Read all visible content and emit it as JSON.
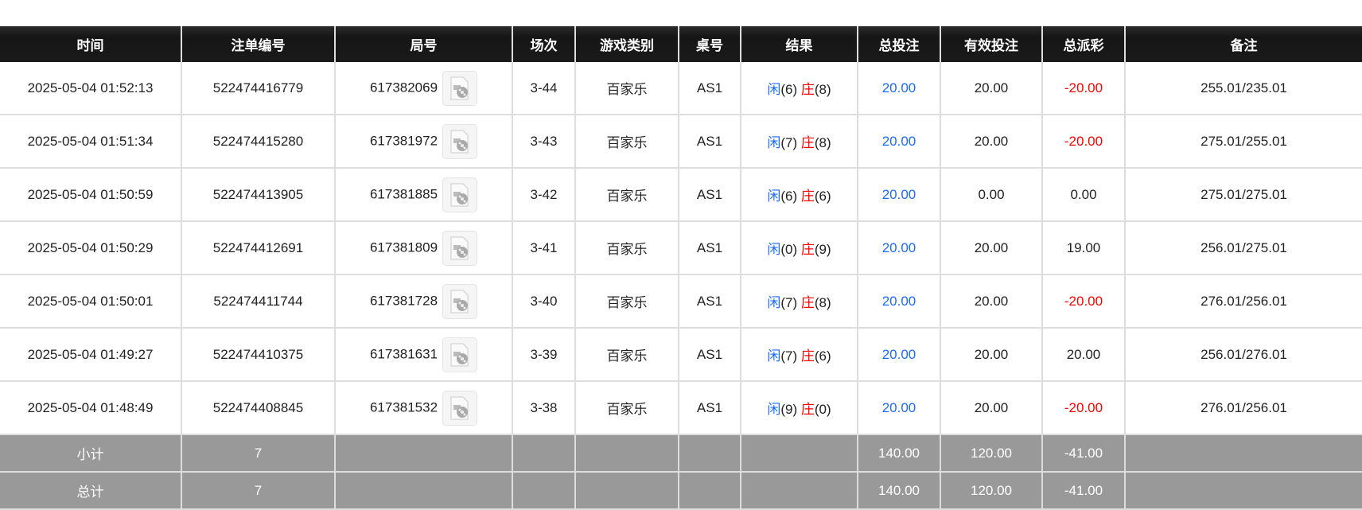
{
  "headers": [
    "时间",
    "注单编号",
    "局号",
    "场次",
    "游戏类别",
    "桌号",
    "结果",
    "总投注",
    "有效投注",
    "总派彩",
    "备注"
  ],
  "result_labels": {
    "player": "闲",
    "banker": "庄"
  },
  "rows": [
    {
      "time": "2025-05-04 01:52:13",
      "bet_id": "522474416779",
      "round": "617382069",
      "shoe": "3-44",
      "game": "百家乐",
      "table": "AS1",
      "player": "(6)",
      "banker": "(8)",
      "total_bet": "20.00",
      "valid_bet": "20.00",
      "payout": "-20.00",
      "payout_neg": true,
      "note": "255.01/235.01"
    },
    {
      "time": "2025-05-04 01:51:34",
      "bet_id": "522474415280",
      "round": "617381972",
      "shoe": "3-43",
      "game": "百家乐",
      "table": "AS1",
      "player": "(7)",
      "banker": "(8)",
      "total_bet": "20.00",
      "valid_bet": "20.00",
      "payout": "-20.00",
      "payout_neg": true,
      "note": "275.01/255.01"
    },
    {
      "time": "2025-05-04 01:50:59",
      "bet_id": "522474413905",
      "round": "617381885",
      "shoe": "3-42",
      "game": "百家乐",
      "table": "AS1",
      "player": "(6)",
      "banker": "(6)",
      "total_bet": "20.00",
      "valid_bet": "0.00",
      "payout": "0.00",
      "payout_neg": false,
      "note": "275.01/275.01"
    },
    {
      "time": "2025-05-04 01:50:29",
      "bet_id": "522474412691",
      "round": "617381809",
      "shoe": "3-41",
      "game": "百家乐",
      "table": "AS1",
      "player": "(0)",
      "banker": "(9)",
      "total_bet": "20.00",
      "valid_bet": "20.00",
      "payout": "19.00",
      "payout_neg": false,
      "note": "256.01/275.01"
    },
    {
      "time": "2025-05-04 01:50:01",
      "bet_id": "522474411744",
      "round": "617381728",
      "shoe": "3-40",
      "game": "百家乐",
      "table": "AS1",
      "player": "(7)",
      "banker": "(8)",
      "total_bet": "20.00",
      "valid_bet": "20.00",
      "payout": "-20.00",
      "payout_neg": true,
      "note": "276.01/256.01"
    },
    {
      "time": "2025-05-04 01:49:27",
      "bet_id": "522474410375",
      "round": "617381631",
      "shoe": "3-39",
      "game": "百家乐",
      "table": "AS1",
      "player": "(7)",
      "banker": "(6)",
      "total_bet": "20.00",
      "valid_bet": "20.00",
      "payout": "20.00",
      "payout_neg": false,
      "note": "256.01/276.01"
    },
    {
      "time": "2025-05-04 01:48:49",
      "bet_id": "522474408845",
      "round": "617381532",
      "shoe": "3-38",
      "game": "百家乐",
      "table": "AS1",
      "player": "(9)",
      "banker": "(0)",
      "total_bet": "20.00",
      "valid_bet": "20.00",
      "payout": "-20.00",
      "payout_neg": true,
      "note": "276.01/256.01"
    }
  ],
  "subtotal": {
    "label": "小计",
    "count": "7",
    "total_bet": "140.00",
    "valid_bet": "120.00",
    "payout": "-41.00"
  },
  "total": {
    "label": "总计",
    "count": "7",
    "total_bet": "140.00",
    "valid_bet": "120.00",
    "payout": "-41.00"
  },
  "colors": {
    "header_bg": "#1a1a1a",
    "summary_bg": "#999999",
    "player": "#1a6cff",
    "banker": "#ff0000",
    "negative": "#ff0000"
  },
  "icons": {
    "replay": "video-file-icon"
  }
}
